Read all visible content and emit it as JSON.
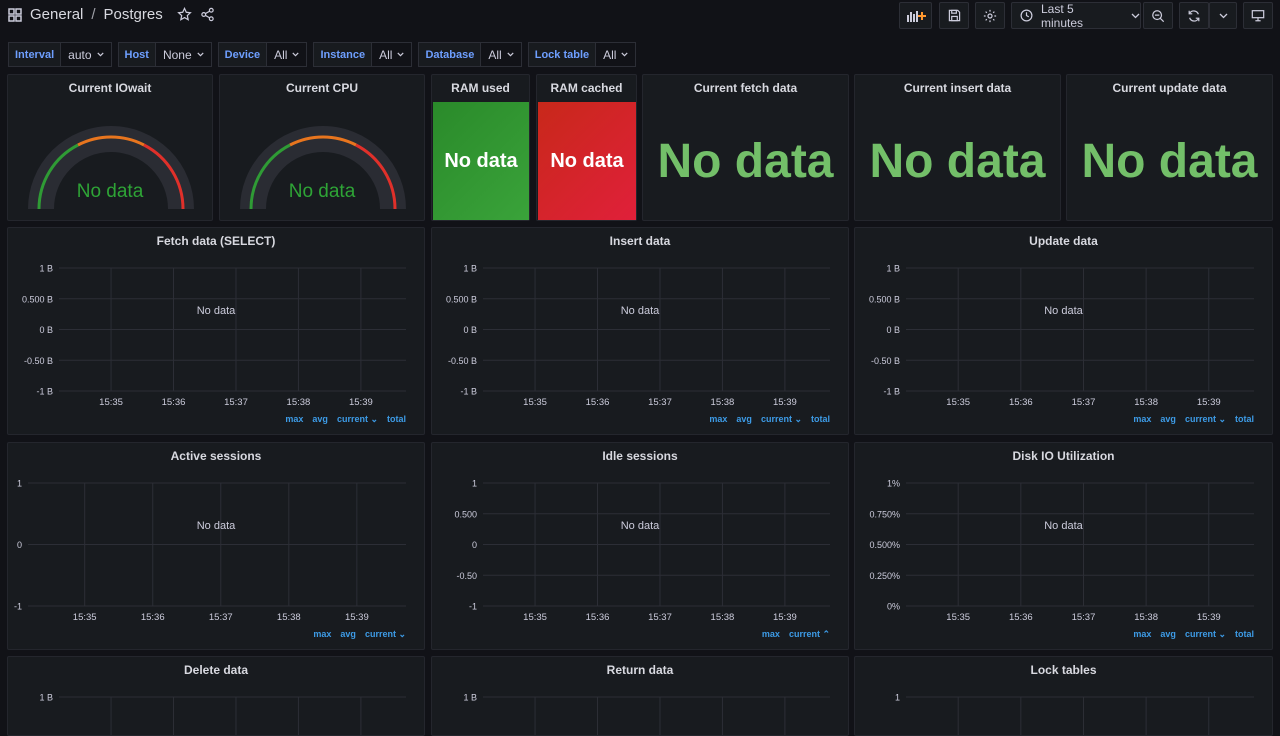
{
  "header": {
    "folder": "General",
    "separator": "/",
    "dashboard": "Postgres",
    "time_range": "Last 5 minutes"
  },
  "variables": [
    {
      "label": "Interval",
      "value": "auto"
    },
    {
      "label": "Host",
      "value": "None"
    },
    {
      "label": "Device",
      "value": "All"
    },
    {
      "label": "Instance",
      "value": "All"
    },
    {
      "label": "Database",
      "value": "All"
    },
    {
      "label": "Lock table",
      "value": "All"
    }
  ],
  "gauges": [
    {
      "title": "Current IOwait",
      "value": "No data"
    },
    {
      "title": "Current CPU",
      "value": "No data"
    }
  ],
  "ram": [
    {
      "title": "RAM used",
      "value": "No data",
      "color": "#2f8f2f"
    },
    {
      "title": "RAM cached",
      "value": "No data",
      "color": "#d8202a"
    }
  ],
  "stats": [
    {
      "title": "Current fetch data",
      "value": "No data"
    },
    {
      "title": "Current insert data",
      "value": "No data"
    },
    {
      "title": "Current update data",
      "value": "No data"
    }
  ],
  "x_ticks": [
    "15:35",
    "15:36",
    "15:37",
    "15:38",
    "15:39"
  ],
  "graphs": [
    {
      "title": "Fetch data (SELECT)",
      "message": "No data",
      "y_ticks": [
        "1 B",
        "0.500 B",
        "0 B",
        "-0.50 B",
        "-1 B"
      ],
      "legend": [
        "max",
        "avg",
        "current ⌄",
        "total"
      ]
    },
    {
      "title": "Insert data",
      "message": "No data",
      "y_ticks": [
        "1 B",
        "0.500 B",
        "0 B",
        "-0.50 B",
        "-1 B"
      ],
      "legend": [
        "max",
        "avg",
        "current ⌄",
        "total"
      ]
    },
    {
      "title": "Update data",
      "message": "No data",
      "y_ticks": [
        "1 B",
        "0.500 B",
        "0 B",
        "-0.50 B",
        "-1 B"
      ],
      "legend": [
        "max",
        "avg",
        "current ⌄",
        "total"
      ]
    },
    {
      "title": "Active sessions",
      "message": "No data",
      "y_ticks": [
        "1",
        "0",
        "-1"
      ],
      "legend": [
        "max",
        "avg",
        "current ⌄"
      ]
    },
    {
      "title": "Idle sessions",
      "message": "No data",
      "y_ticks": [
        "1",
        "0.500",
        "0",
        "-0.50",
        "-1"
      ],
      "legend": [
        "max",
        "current ⌃"
      ]
    },
    {
      "title": "Disk IO Utilization",
      "message": "No data",
      "y_ticks": [
        "1%",
        "0.750%",
        "0.500%",
        "0.250%",
        "0%"
      ],
      "legend": [
        "max",
        "avg",
        "current ⌄",
        "total"
      ]
    },
    {
      "title": "Delete data",
      "y_ticks": [
        "1 B"
      ]
    },
    {
      "title": "Return data",
      "y_ticks": [
        "1 B"
      ]
    },
    {
      "title": "Lock tables",
      "y_ticks": [
        "1"
      ]
    }
  ],
  "colors": {
    "ok": "#73bf69",
    "legend": "#3d9be6",
    "var_label": "#6e9fff"
  }
}
